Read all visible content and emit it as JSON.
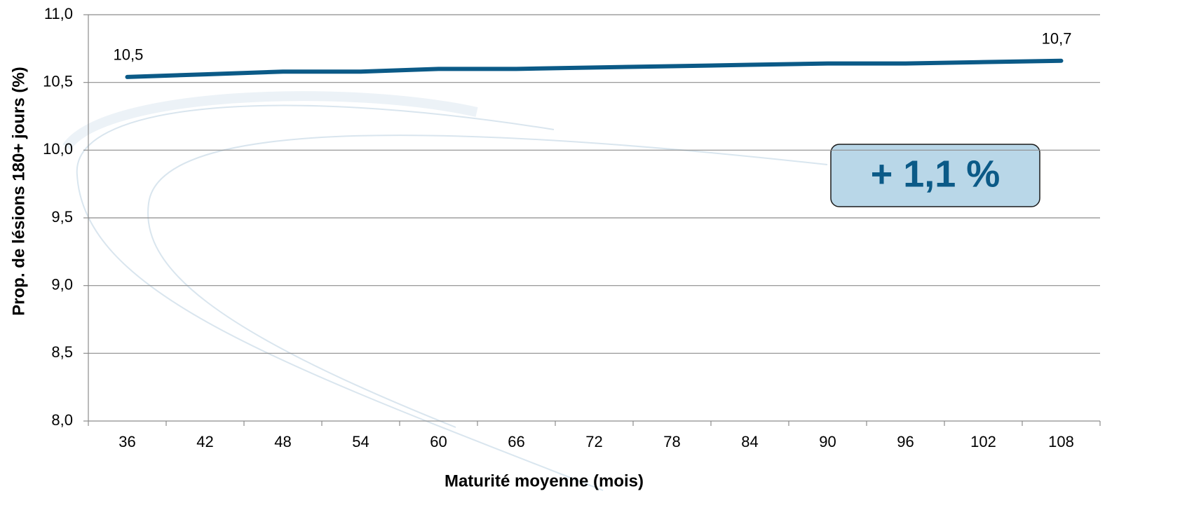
{
  "chart_data": {
    "type": "line",
    "x_label": "Maturité moyenne (mois)",
    "y_label": "Prop. de lésions 180+ jours (%)",
    "annotation": "+ 1,1 %",
    "categories": [
      "36",
      "42",
      "48",
      "54",
      "60",
      "66",
      "72",
      "78",
      "84",
      "90",
      "96",
      "102",
      "108"
    ],
    "values": [
      10.54,
      10.56,
      10.58,
      10.58,
      10.6,
      10.6,
      10.61,
      10.62,
      10.63,
      10.64,
      10.64,
      10.65,
      10.66
    ],
    "value_labels": [
      "10,5",
      null,
      null,
      null,
      null,
      null,
      null,
      null,
      null,
      null,
      null,
      null,
      "10,7"
    ],
    "color": "#0b5a87",
    "ylim": [
      8,
      11
    ],
    "yticks": [
      {
        "value": 8,
        "label": "8,0"
      },
      {
        "value": 8.5,
        "label": "8,5"
      },
      {
        "value": 9,
        "label": "9,0"
      },
      {
        "value": 9.5,
        "label": "9,5"
      },
      {
        "value": 10,
        "label": "10,0"
      },
      {
        "value": 10.5,
        "label": "10,5"
      },
      {
        "value": 11,
        "label": "11,0"
      }
    ],
    "grid": true
  }
}
